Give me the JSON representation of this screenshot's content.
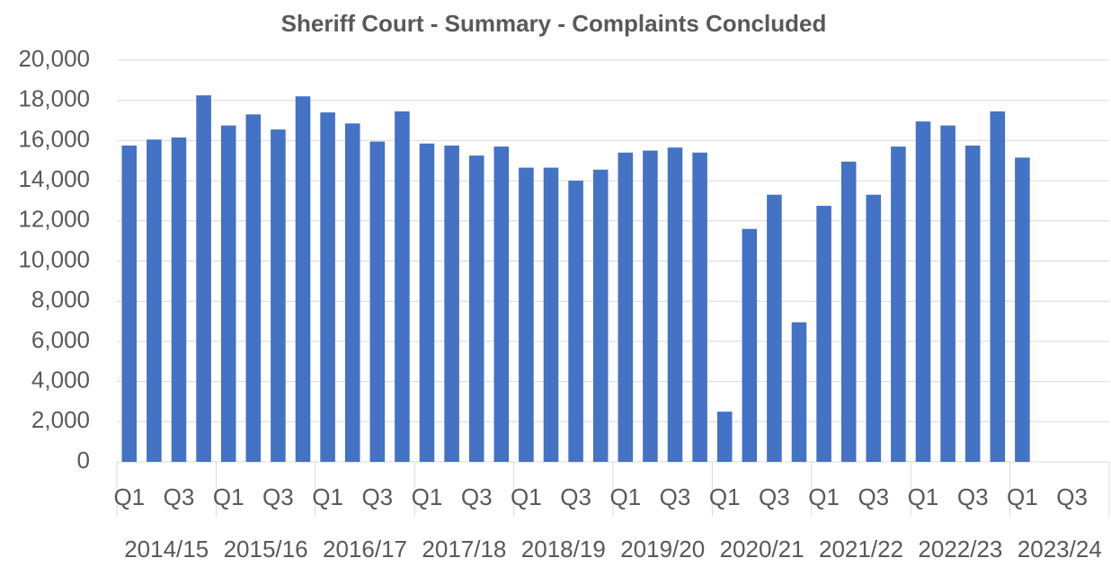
{
  "chart_data": {
    "type": "bar",
    "title": "Sheriff Court - Summary - Complaints Concluded",
    "categories": [
      "Q1",
      null,
      "Q3",
      null,
      "Q1",
      null,
      "Q3",
      null,
      "Q1",
      null,
      "Q3",
      null,
      "Q1",
      null,
      "Q3",
      null,
      "Q1",
      null,
      "Q3",
      null,
      "Q1",
      null,
      "Q3",
      null,
      "Q1",
      null,
      "Q3",
      null,
      "Q1",
      null,
      "Q3",
      null,
      "Q1",
      null,
      "Q3",
      null,
      "Q1",
      null,
      "Q3",
      null
    ],
    "groups": [
      "2014/15",
      "2015/16",
      "2016/17",
      "2017/18",
      "2018/19",
      "2019/20",
      "2020/21",
      "2021/22",
      "2022/23",
      "2023/24"
    ],
    "values": [
      15750,
      16050,
      16150,
      18250,
      16750,
      17300,
      16550,
      18200,
      17400,
      16850,
      15950,
      17450,
      15850,
      15750,
      15250,
      15700,
      14650,
      14650,
      14000,
      14550,
      15400,
      15500,
      15650,
      15400,
      2500,
      11600,
      13300,
      6950,
      12750,
      14950,
      13300,
      15700,
      16950,
      16750,
      15750,
      17450,
      15150,
      null,
      null,
      null
    ],
    "color": "#4472c4",
    "ylim": [
      0,
      20000
    ],
    "yticks": [
      0,
      {
        "value": 2000,
        "label": "2,000"
      },
      {
        "value": 4000,
        "label": "4,000"
      },
      {
        "value": 6000,
        "label": "6,000"
      },
      {
        "value": 8000,
        "label": "8,000"
      },
      {
        "value": 10000,
        "label": "10,000"
      },
      {
        "value": 12000,
        "label": "12,000"
      },
      {
        "value": 14000,
        "label": "14,000"
      },
      {
        "value": 16000,
        "label": "16,000"
      },
      {
        "value": 18000,
        "label": "18,000"
      },
      {
        "value": 20000,
        "label": "20,000"
      }
    ],
    "grid": true
  }
}
